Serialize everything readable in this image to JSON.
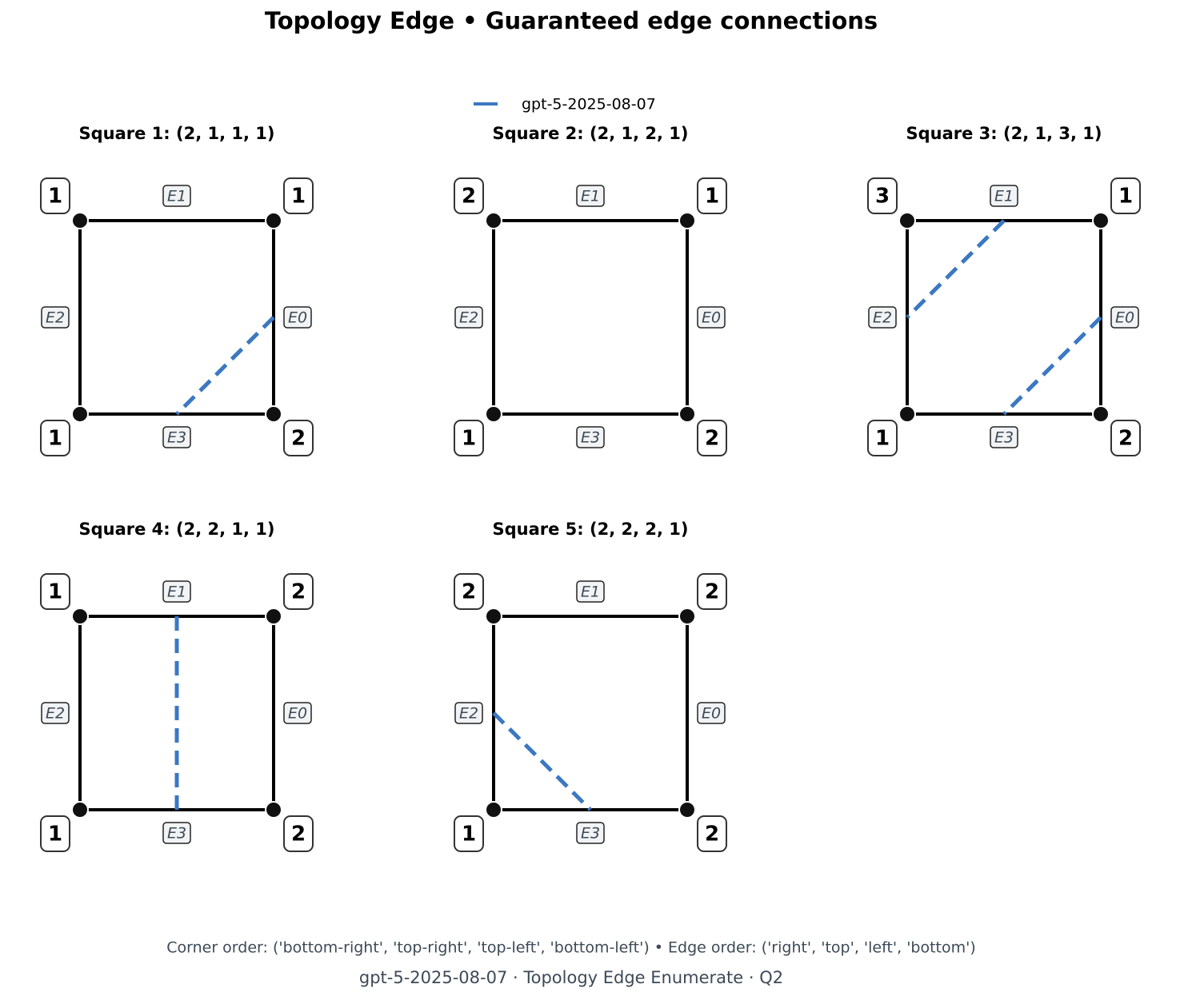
{
  "title": "Topology Edge • Guaranteed edge connections",
  "legend": {
    "label": "gpt-5-2025-08-07",
    "color": "#3a78c2"
  },
  "squares": [
    {
      "title": "Square 1: (2, 1, 1, 1)",
      "corners": [
        2,
        1,
        1,
        1
      ],
      "edges": [
        "E0",
        "E1",
        "E2",
        "E3"
      ],
      "connections": [
        [
          0,
          3
        ]
      ]
    },
    {
      "title": "Square 2: (2, 1, 2, 1)",
      "corners": [
        2,
        1,
        2,
        1
      ],
      "edges": [
        "E0",
        "E1",
        "E2",
        "E3"
      ],
      "connections": []
    },
    {
      "title": "Square 3: (2, 1, 3, 1)",
      "corners": [
        2,
        1,
        3,
        1
      ],
      "edges": [
        "E0",
        "E1",
        "E2",
        "E3"
      ],
      "connections": [
        [
          1,
          2
        ],
        [
          0,
          3
        ]
      ]
    },
    {
      "title": "Square 4: (2, 2, 1, 1)",
      "corners": [
        2,
        2,
        1,
        1
      ],
      "edges": [
        "E0",
        "E1",
        "E2",
        "E3"
      ],
      "connections": [
        [
          1,
          3
        ]
      ]
    },
    {
      "title": "Square 5: (2, 2, 2, 1)",
      "corners": [
        2,
        2,
        2,
        1
      ],
      "edges": [
        "E0",
        "E1",
        "E2",
        "E3"
      ],
      "connections": [
        [
          2,
          3
        ]
      ]
    }
  ],
  "footer": {
    "note": "Corner order: ('bottom-right', 'top-right', 'top-left', 'bottom-left') • Edge order: ('right', 'top', 'left', 'bottom')",
    "caption": "gpt-5-2025-08-07 · Topology Edge Enumerate · Q2"
  }
}
